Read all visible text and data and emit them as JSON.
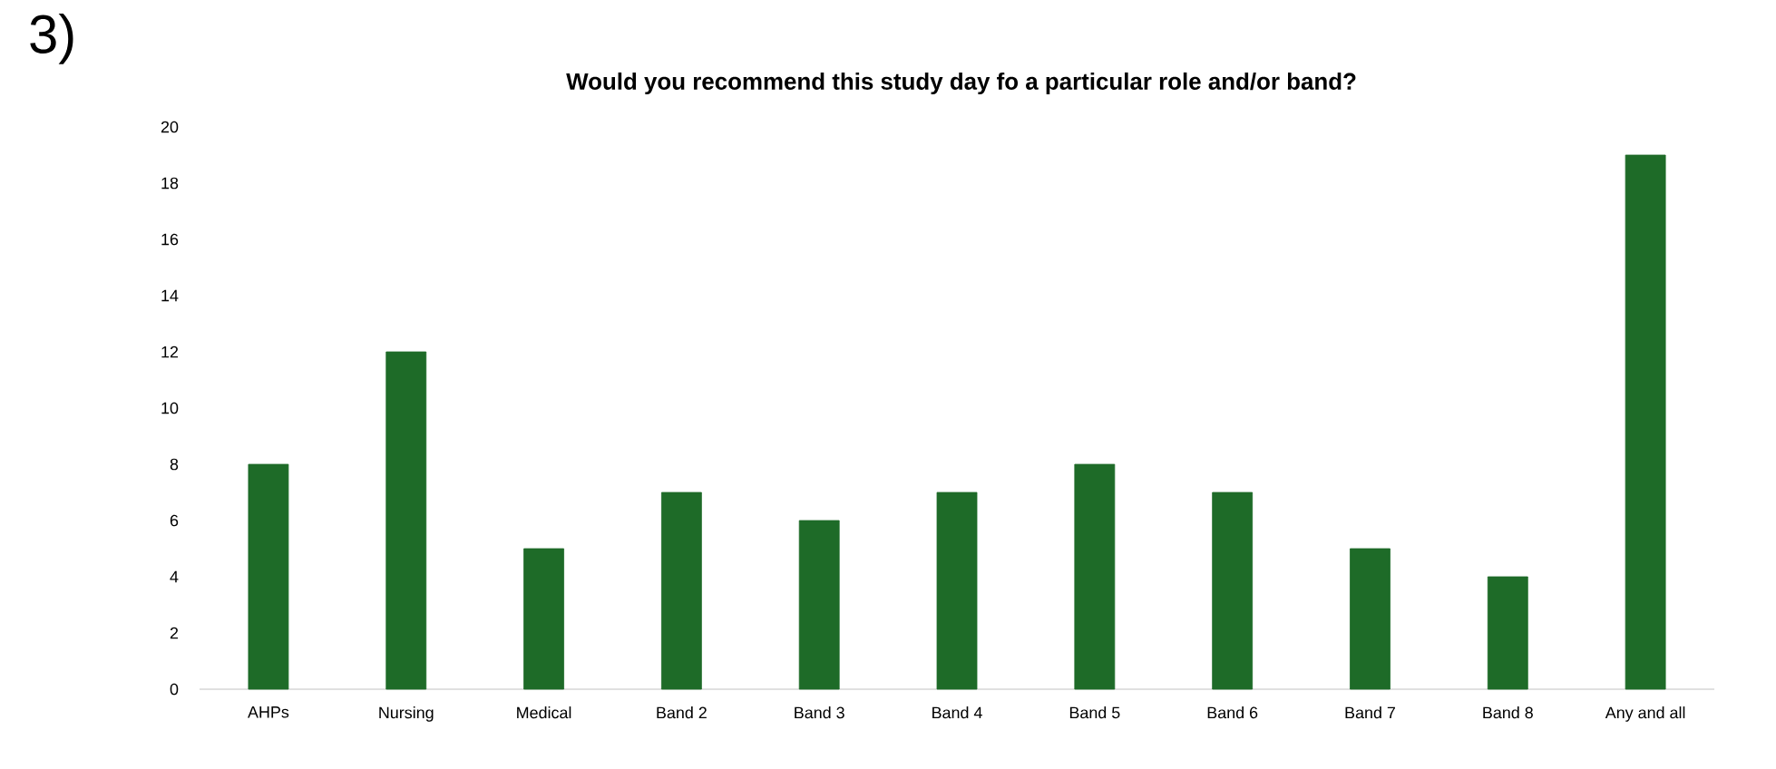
{
  "chart_data": {
    "type": "bar",
    "title": "Would you recommend this study day fo a particular role and/or band?",
    "annotations": [
      "3)"
    ],
    "categories": [
      "AHPs",
      "Nursing",
      "Medical",
      "Band 2",
      "Band 3",
      "Band 4",
      "Band 5",
      "Band 6",
      "Band 7",
      "Band 8",
      "Any and all"
    ],
    "values": [
      8,
      12,
      5,
      7,
      6,
      7,
      8,
      7,
      5,
      4,
      19
    ],
    "color": "#1e6b28",
    "ylim": [
      0,
      20
    ],
    "yticks": [
      0,
      2,
      4,
      6,
      8,
      10,
      12,
      14,
      16,
      18,
      20
    ],
    "grid": false
  }
}
